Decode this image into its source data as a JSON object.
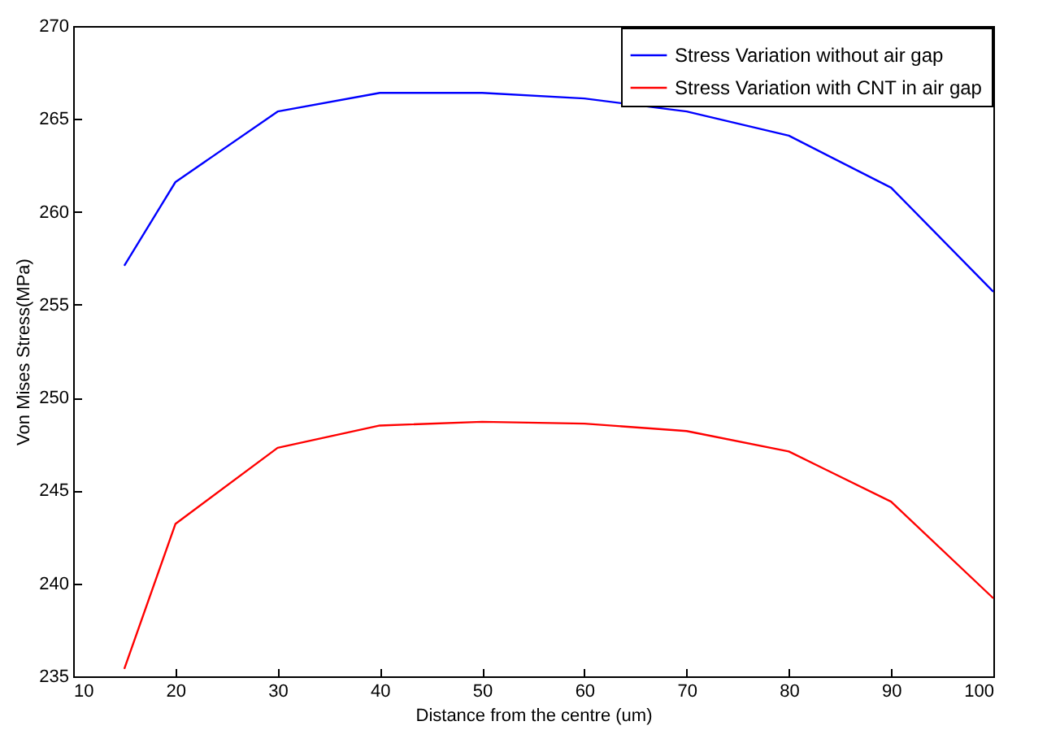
{
  "chart_data": {
    "type": "line",
    "xlabel": "Distance from the centre (um)",
    "ylabel": "Von Mises Stress(MPa)",
    "x": [
      15,
      20,
      30,
      40,
      50,
      60,
      70,
      80,
      90,
      100
    ],
    "series": [
      {
        "name": "Stress Variation without air gap",
        "color": "#0000ff",
        "values": [
          257.1,
          261.6,
          265.4,
          266.4,
          266.4,
          266.1,
          265.4,
          264.1,
          261.3,
          255.7
        ]
      },
      {
        "name": "Stress Variation with CNT in air gap",
        "color": "#ff0000",
        "values": [
          235.4,
          243.2,
          247.3,
          248.5,
          248.7,
          248.6,
          248.2,
          247.1,
          244.4,
          239.2
        ]
      }
    ],
    "xlim": [
      10,
      100
    ],
    "xticks": [
      10,
      20,
      30,
      40,
      50,
      60,
      70,
      80,
      90,
      100
    ],
    "ylim": [
      235,
      270
    ],
    "yticks": [
      235,
      240,
      245,
      250,
      255,
      260,
      265,
      270
    ],
    "grid": false,
    "legend": "top right",
    "marker": "none",
    "line_style": "solid"
  }
}
